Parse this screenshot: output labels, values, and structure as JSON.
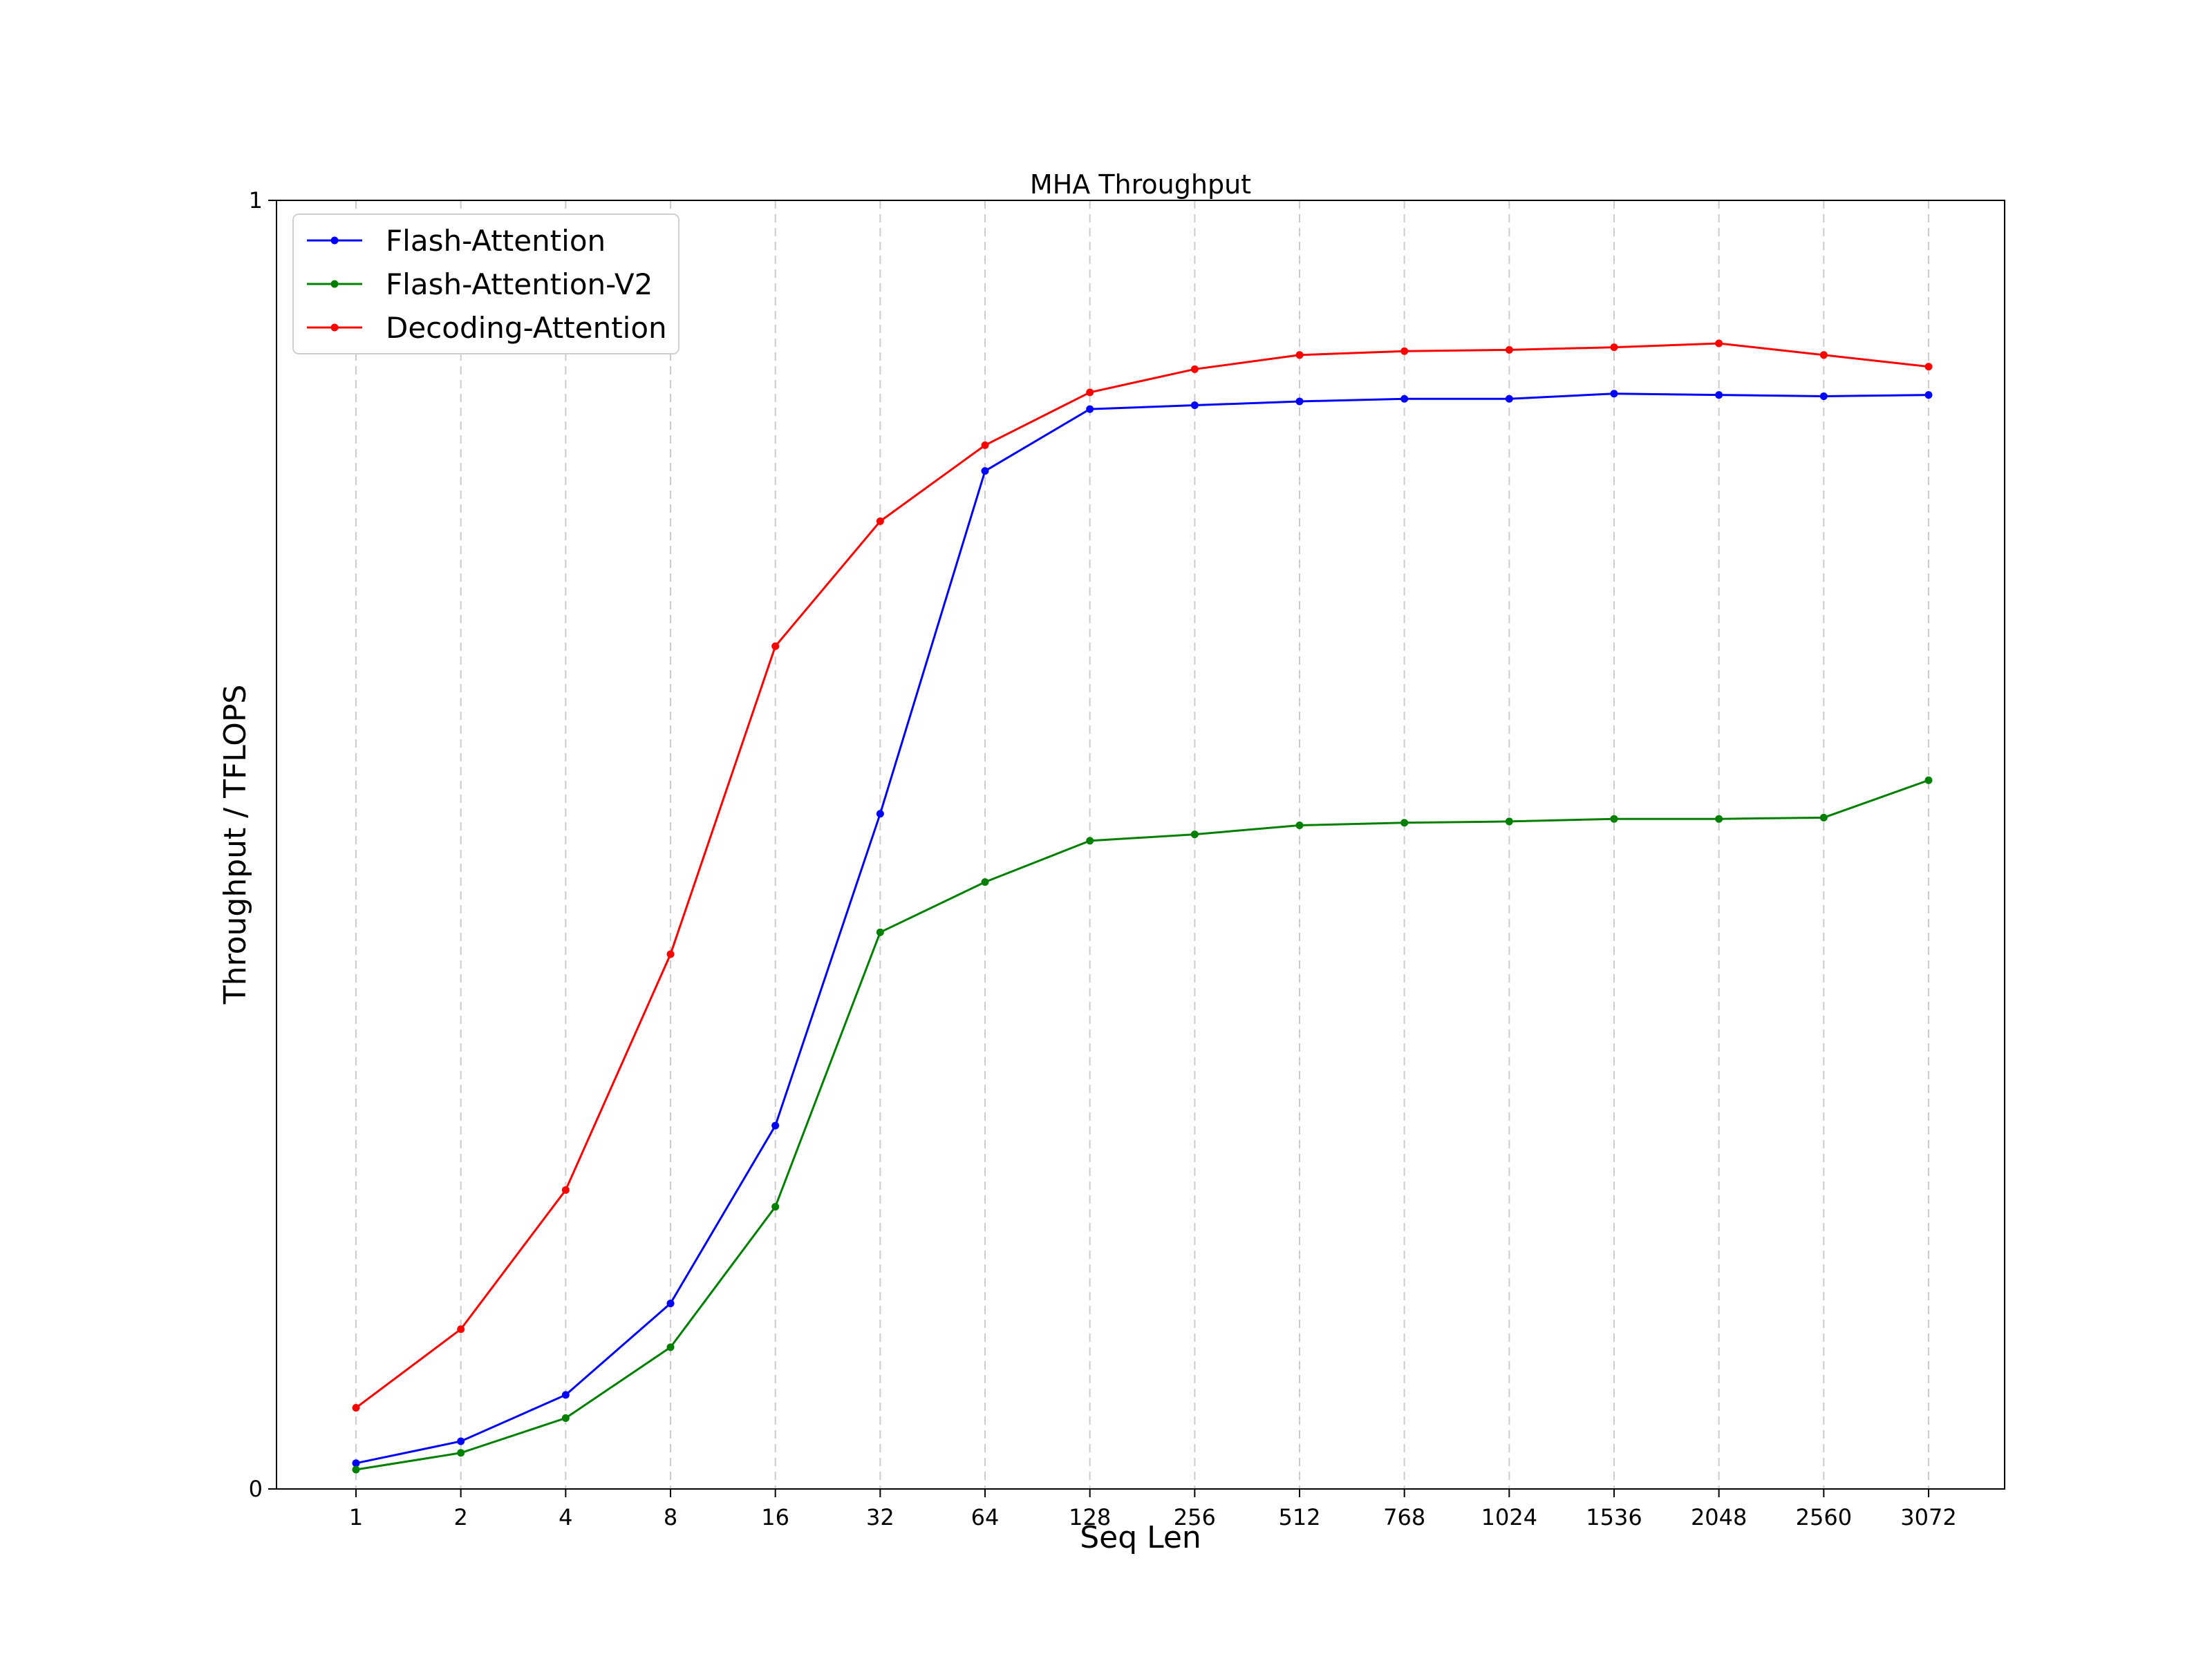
{
  "chart_data": {
    "type": "line",
    "title": "MHA Throughput",
    "xlabel": "Seq Len",
    "ylabel": "Throughput / TFLOPS",
    "categories": [
      "1",
      "2",
      "4",
      "8",
      "16",
      "32",
      "64",
      "128",
      "256",
      "512",
      "768",
      "1024",
      "1536",
      "2048",
      "2560",
      "3072"
    ],
    "ylim": [
      0,
      1
    ],
    "yticks": [
      "0",
      "1"
    ],
    "grid": "vertical-dashed",
    "legend_position": "top-left",
    "series": [
      {
        "name": "Flash-Attention",
        "color": "#0000ff",
        "values": [
          0.02,
          0.037,
          0.073,
          0.144,
          0.282,
          0.524,
          0.79,
          0.838,
          0.841,
          0.844,
          0.846,
          0.846,
          0.85,
          0.849,
          0.848,
          0.849
        ]
      },
      {
        "name": "Flash-Attention-V2",
        "color": "#008000",
        "values": [
          0.015,
          0.028,
          0.055,
          0.11,
          0.219,
          0.432,
          0.471,
          0.503,
          0.508,
          0.515,
          0.517,
          0.518,
          0.52,
          0.52,
          0.521,
          0.55
        ]
      },
      {
        "name": "Decoding-Attention",
        "color": "#ff0000",
        "values": [
          0.063,
          0.124,
          0.232,
          0.415,
          0.654,
          0.751,
          0.81,
          0.851,
          0.869,
          0.88,
          0.883,
          0.884,
          0.886,
          0.889,
          0.88,
          0.871
        ]
      }
    ]
  }
}
